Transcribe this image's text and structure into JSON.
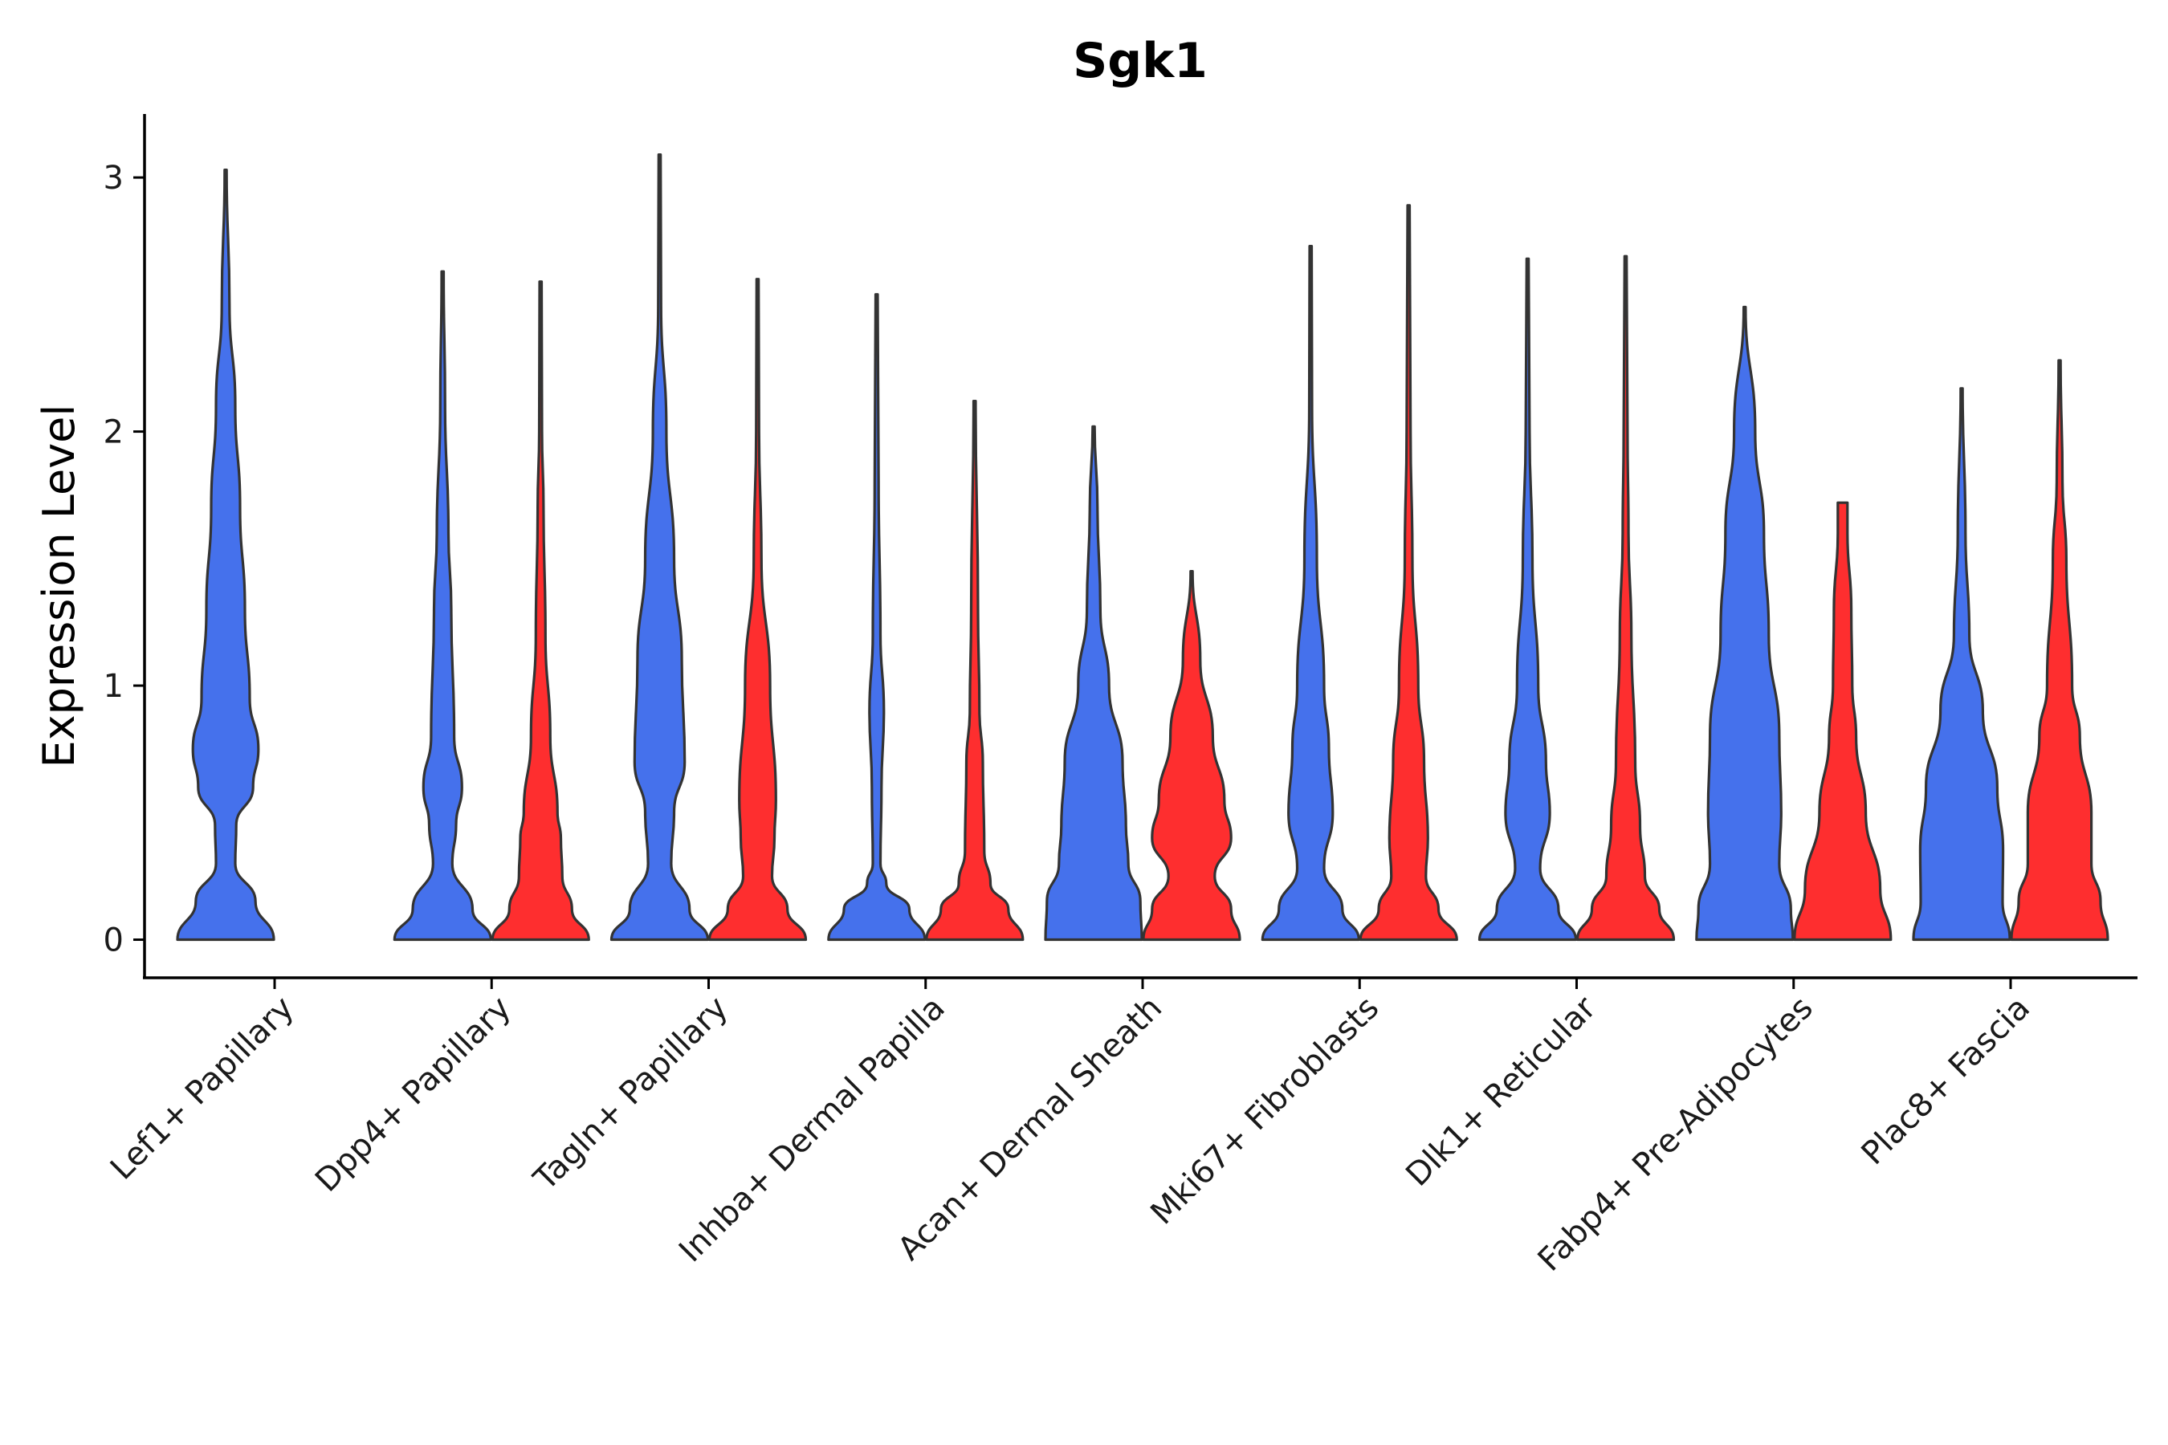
{
  "chart_data": {
    "type": "violin",
    "title": "Sgk1",
    "xlabel": "",
    "ylabel": "Expression Level",
    "ylim": [
      -0.15,
      3.25
    ],
    "yticks": [
      0,
      1,
      2,
      3
    ],
    "series_colors": [
      "#4571EC",
      "#FE2E2F"
    ],
    "categories": [
      "Lef1+ Papillary",
      "Dpp4+ Papillary",
      "Tagln+ Papillary",
      "Inhba+ Dermal Papilla",
      "Acan+ Dermal Sheath",
      "Mki67+ Fibroblasts",
      "Dlk1+ Reticular",
      "Fabp4+ Pre-Adipocytes",
      "Plac8+ Fascia"
    ],
    "violins": [
      {
        "category": 0,
        "series": 0,
        "max": 3.03,
        "profile": [
          [
            0,
            1.0
          ],
          [
            0.15,
            0.62
          ],
          [
            0.3,
            0.2
          ],
          [
            0.45,
            0.22
          ],
          [
            0.6,
            0.57
          ],
          [
            0.75,
            0.68
          ],
          [
            0.95,
            0.5
          ],
          [
            1.3,
            0.4
          ],
          [
            1.7,
            0.3
          ],
          [
            2.1,
            0.2
          ],
          [
            2.5,
            0.08
          ],
          [
            3.03,
            0.02
          ]
        ]
      },
      {
        "category": 1,
        "series": 0,
        "max": 2.63,
        "profile": [
          [
            0,
            1.0
          ],
          [
            0.12,
            0.62
          ],
          [
            0.3,
            0.2
          ],
          [
            0.45,
            0.28
          ],
          [
            0.6,
            0.4
          ],
          [
            0.8,
            0.24
          ],
          [
            1.3,
            0.18
          ],
          [
            1.6,
            0.12
          ],
          [
            2.1,
            0.05
          ],
          [
            2.63,
            0.02
          ]
        ]
      },
      {
        "category": 1,
        "series": 1,
        "max": 2.59,
        "profile": [
          [
            0,
            1.0
          ],
          [
            0.12,
            0.65
          ],
          [
            0.25,
            0.45
          ],
          [
            0.4,
            0.42
          ],
          [
            0.5,
            0.35
          ],
          [
            0.8,
            0.2
          ],
          [
            1.2,
            0.1
          ],
          [
            1.7,
            0.06
          ],
          [
            2.0,
            0.03
          ],
          [
            2.59,
            0.02
          ]
        ]
      },
      {
        "category": 2,
        "series": 0,
        "max": 3.09,
        "profile": [
          [
            0,
            1.0
          ],
          [
            0.12,
            0.62
          ],
          [
            0.3,
            0.24
          ],
          [
            0.5,
            0.3
          ],
          [
            0.7,
            0.52
          ],
          [
            1.1,
            0.46
          ],
          [
            1.5,
            0.3
          ],
          [
            2.0,
            0.14
          ],
          [
            2.5,
            0.03
          ],
          [
            3.09,
            0.02
          ]
        ]
      },
      {
        "category": 2,
        "series": 1,
        "max": 2.6,
        "profile": [
          [
            0,
            1.0
          ],
          [
            0.12,
            0.62
          ],
          [
            0.25,
            0.3
          ],
          [
            0.4,
            0.35
          ],
          [
            0.55,
            0.38
          ],
          [
            1.0,
            0.26
          ],
          [
            1.5,
            0.08
          ],
          [
            2.0,
            0.03
          ],
          [
            2.6,
            0.02
          ]
        ]
      },
      {
        "category": 3,
        "series": 0,
        "max": 2.54,
        "profile": [
          [
            0,
            1.0
          ],
          [
            0.12,
            0.68
          ],
          [
            0.22,
            0.2
          ],
          [
            0.3,
            0.08
          ],
          [
            0.6,
            0.1
          ],
          [
            0.9,
            0.15
          ],
          [
            1.2,
            0.08
          ],
          [
            1.8,
            0.04
          ],
          [
            2.54,
            0.02
          ]
        ]
      },
      {
        "category": 3,
        "series": 1,
        "max": 2.12,
        "profile": [
          [
            0,
            1.0
          ],
          [
            0.12,
            0.7
          ],
          [
            0.22,
            0.33
          ],
          [
            0.35,
            0.2
          ],
          [
            0.7,
            0.17
          ],
          [
            0.9,
            0.1
          ],
          [
            1.3,
            0.07
          ],
          [
            2.12,
            0.02
          ]
        ]
      },
      {
        "category": 4,
        "series": 0,
        "max": 2.02,
        "profile": [
          [
            0,
            1.0
          ],
          [
            0.15,
            0.97
          ],
          [
            0.3,
            0.72
          ],
          [
            0.45,
            0.67
          ],
          [
            0.7,
            0.6
          ],
          [
            1.0,
            0.32
          ],
          [
            1.3,
            0.14
          ],
          [
            1.7,
            0.08
          ],
          [
            2.02,
            0.02
          ]
        ]
      },
      {
        "category": 4,
        "series": 1,
        "max": 1.45,
        "profile": [
          [
            0,
            1.0
          ],
          [
            0.12,
            0.82
          ],
          [
            0.25,
            0.48
          ],
          [
            0.4,
            0.82
          ],
          [
            0.55,
            0.68
          ],
          [
            0.8,
            0.44
          ],
          [
            1.1,
            0.18
          ],
          [
            1.45,
            0.02
          ]
        ]
      },
      {
        "category": 5,
        "series": 0,
        "max": 2.73,
        "profile": [
          [
            0,
            1.0
          ],
          [
            0.12,
            0.66
          ],
          [
            0.28,
            0.28
          ],
          [
            0.5,
            0.46
          ],
          [
            0.75,
            0.38
          ],
          [
            1.0,
            0.28
          ],
          [
            1.5,
            0.13
          ],
          [
            2.1,
            0.03
          ],
          [
            2.73,
            0.02
          ]
        ]
      },
      {
        "category": 5,
        "series": 1,
        "max": 2.89,
        "profile": [
          [
            0,
            1.0
          ],
          [
            0.12,
            0.62
          ],
          [
            0.25,
            0.36
          ],
          [
            0.4,
            0.4
          ],
          [
            0.7,
            0.32
          ],
          [
            1.0,
            0.2
          ],
          [
            1.5,
            0.08
          ],
          [
            2.0,
            0.04
          ],
          [
            2.89,
            0.02
          ]
        ]
      },
      {
        "category": 6,
        "series": 0,
        "max": 2.68,
        "profile": [
          [
            0,
            1.0
          ],
          [
            0.12,
            0.64
          ],
          [
            0.28,
            0.26
          ],
          [
            0.5,
            0.46
          ],
          [
            0.7,
            0.38
          ],
          [
            1.0,
            0.22
          ],
          [
            1.5,
            0.1
          ],
          [
            2.0,
            0.04
          ],
          [
            2.68,
            0.02
          ]
        ]
      },
      {
        "category": 6,
        "series": 1,
        "max": 2.69,
        "profile": [
          [
            0,
            1.0
          ],
          [
            0.12,
            0.7
          ],
          [
            0.25,
            0.4
          ],
          [
            0.45,
            0.3
          ],
          [
            0.7,
            0.2
          ],
          [
            1.2,
            0.12
          ],
          [
            1.6,
            0.06
          ],
          [
            2.0,
            0.04
          ],
          [
            2.69,
            0.02
          ]
        ]
      },
      {
        "category": 7,
        "series": 0,
        "max": 2.49,
        "profile": [
          [
            0,
            1.0
          ],
          [
            0.12,
            0.96
          ],
          [
            0.3,
            0.72
          ],
          [
            0.5,
            0.76
          ],
          [
            0.8,
            0.72
          ],
          [
            1.2,
            0.5
          ],
          [
            1.6,
            0.4
          ],
          [
            2.0,
            0.22
          ],
          [
            2.49,
            0.02
          ]
        ]
      },
      {
        "category": 7,
        "series": 1,
        "max": 1.72,
        "profile": [
          [
            0,
            1.0
          ],
          [
            0.2,
            0.78
          ],
          [
            0.5,
            0.48
          ],
          [
            0.8,
            0.28
          ],
          [
            1.0,
            0.2
          ],
          [
            1.3,
            0.18
          ],
          [
            1.6,
            0.1
          ],
          [
            1.72,
            0.1
          ]
        ]
      },
      {
        "category": 8,
        "series": 0,
        "max": 2.17,
        "profile": [
          [
            0,
            1.0
          ],
          [
            0.15,
            0.85
          ],
          [
            0.35,
            0.86
          ],
          [
            0.6,
            0.74
          ],
          [
            0.9,
            0.44
          ],
          [
            1.2,
            0.16
          ],
          [
            1.6,
            0.08
          ],
          [
            2.17,
            0.02
          ]
        ]
      },
      {
        "category": 8,
        "series": 1,
        "max": 2.28,
        "profile": [
          [
            0,
            1.0
          ],
          [
            0.15,
            0.85
          ],
          [
            0.3,
            0.66
          ],
          [
            0.5,
            0.66
          ],
          [
            0.8,
            0.42
          ],
          [
            1.0,
            0.26
          ],
          [
            1.5,
            0.14
          ],
          [
            1.8,
            0.06
          ],
          [
            2.28,
            0.02
          ]
        ]
      }
    ]
  }
}
